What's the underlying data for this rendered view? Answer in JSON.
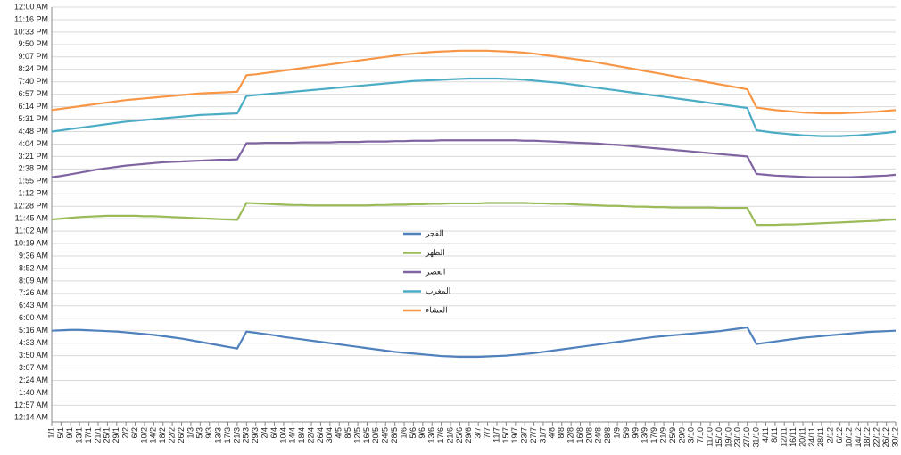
{
  "chart_data": {
    "type": "line",
    "categories": [
      "1/1",
      "5/1",
      "9/1",
      "13/1",
      "17/1",
      "21/1",
      "25/1",
      "29/1",
      "2/2",
      "6/2",
      "10/2",
      "14/2",
      "18/2",
      "22/2",
      "26/2",
      "1/3",
      "5/3",
      "9/3",
      "13/3",
      "17/3",
      "21/3",
      "25/3",
      "29/3",
      "2/4",
      "6/4",
      "10/4",
      "14/4",
      "18/4",
      "22/4",
      "26/4",
      "30/4",
      "4/5",
      "8/5",
      "12/5",
      "16/5",
      "20/5",
      "24/5",
      "28/5",
      "1/6",
      "5/6",
      "9/6",
      "13/6",
      "17/6",
      "21/6",
      "25/6",
      "29/6",
      "3/7",
      "7/7",
      "11/7",
      "15/7",
      "19/7",
      "23/7",
      "27/7",
      "31/7",
      "4/8",
      "8/8",
      "12/8",
      "16/8",
      "20/8",
      "24/8",
      "28/8",
      "1/9",
      "5/9",
      "9/9",
      "13/9",
      "17/9",
      "21/9",
      "25/9",
      "29/9",
      "3/10",
      "7/10",
      "11/10",
      "15/10",
      "19/10",
      "23/10",
      "27/10",
      "31/10",
      "4/11",
      "8/11",
      "12/11",
      "16/11",
      "20/11",
      "24/11",
      "28/11",
      "2/12",
      "6/12",
      "10/12",
      "14/12",
      "18/12",
      "22/12",
      "26/12",
      "30/12"
    ],
    "series": [
      {
        "name": "الفجر",
        "color": "#4f81bd",
        "values": [
          0.22,
          0.221,
          0.222,
          0.222,
          0.221,
          0.22,
          0.219,
          0.218,
          0.216,
          0.214,
          0.212,
          0.21,
          0.207,
          0.204,
          0.201,
          0.197,
          0.193,
          0.189,
          0.185,
          0.181,
          0.177,
          0.218,
          0.215,
          0.212,
          0.209,
          0.205,
          0.202,
          0.199,
          0.196,
          0.193,
          0.19,
          0.187,
          0.184,
          0.181,
          0.178,
          0.175,
          0.172,
          0.169,
          0.167,
          0.165,
          0.163,
          0.161,
          0.159,
          0.158,
          0.157,
          0.157,
          0.157,
          0.158,
          0.159,
          0.16,
          0.162,
          0.164,
          0.166,
          0.169,
          0.172,
          0.175,
          0.178,
          0.181,
          0.184,
          0.187,
          0.19,
          0.193,
          0.196,
          0.199,
          0.202,
          0.205,
          0.207,
          0.209,
          0.211,
          0.213,
          0.215,
          0.217,
          0.219,
          0.222,
          0.225,
          0.228,
          0.188,
          0.191,
          0.194,
          0.197,
          0.2,
          0.203,
          0.205,
          0.207,
          0.209,
          0.211,
          0.213,
          0.215,
          0.217,
          0.218,
          0.219,
          0.22
        ]
      },
      {
        "name": "الظهر",
        "color": "#9bbb59",
        "values": [
          0.488,
          0.49,
          0.492,
          0.494,
          0.495,
          0.496,
          0.497,
          0.497,
          0.497,
          0.497,
          0.496,
          0.496,
          0.495,
          0.494,
          0.493,
          0.492,
          0.491,
          0.49,
          0.489,
          0.488,
          0.487,
          0.528,
          0.527,
          0.526,
          0.525,
          0.524,
          0.523,
          0.523,
          0.522,
          0.522,
          0.522,
          0.522,
          0.522,
          0.522,
          0.522,
          0.523,
          0.523,
          0.524,
          0.524,
          0.525,
          0.525,
          0.526,
          0.526,
          0.527,
          0.527,
          0.527,
          0.527,
          0.528,
          0.528,
          0.528,
          0.528,
          0.528,
          0.527,
          0.527,
          0.526,
          0.526,
          0.525,
          0.524,
          0.523,
          0.522,
          0.521,
          0.521,
          0.52,
          0.519,
          0.519,
          0.518,
          0.518,
          0.517,
          0.517,
          0.517,
          0.517,
          0.517,
          0.516,
          0.516,
          0.516,
          0.516,
          0.475,
          0.475,
          0.475,
          0.476,
          0.476,
          0.477,
          0.478,
          0.479,
          0.48,
          0.481,
          0.482,
          0.483,
          0.484,
          0.485,
          0.487,
          0.488
        ]
      },
      {
        "name": "العصر",
        "color": "#8064a2",
        "values": [
          0.59,
          0.593,
          0.597,
          0.601,
          0.605,
          0.609,
          0.612,
          0.615,
          0.618,
          0.62,
          0.622,
          0.624,
          0.626,
          0.627,
          0.628,
          0.629,
          0.63,
          0.631,
          0.632,
          0.632,
          0.633,
          0.672,
          0.672,
          0.673,
          0.673,
          0.673,
          0.673,
          0.674,
          0.674,
          0.674,
          0.674,
          0.675,
          0.675,
          0.675,
          0.676,
          0.676,
          0.676,
          0.677,
          0.677,
          0.678,
          0.678,
          0.678,
          0.679,
          0.679,
          0.679,
          0.679,
          0.679,
          0.679,
          0.679,
          0.679,
          0.679,
          0.678,
          0.678,
          0.677,
          0.676,
          0.675,
          0.674,
          0.673,
          0.672,
          0.671,
          0.669,
          0.668,
          0.666,
          0.664,
          0.662,
          0.66,
          0.658,
          0.656,
          0.654,
          0.652,
          0.65,
          0.648,
          0.646,
          0.644,
          0.642,
          0.64,
          0.598,
          0.596,
          0.594,
          0.593,
          0.592,
          0.591,
          0.59,
          0.59,
          0.59,
          0.59,
          0.59,
          0.591,
          0.592,
          0.593,
          0.594,
          0.596
        ]
      },
      {
        "name": "المغرب",
        "color": "#4bacc6",
        "values": [
          0.7,
          0.703,
          0.706,
          0.709,
          0.712,
          0.715,
          0.718,
          0.721,
          0.724,
          0.726,
          0.728,
          0.73,
          0.732,
          0.734,
          0.736,
          0.738,
          0.74,
          0.741,
          0.742,
          0.743,
          0.744,
          0.786,
          0.788,
          0.79,
          0.792,
          0.794,
          0.796,
          0.798,
          0.8,
          0.802,
          0.804,
          0.806,
          0.808,
          0.81,
          0.812,
          0.814,
          0.816,
          0.818,
          0.82,
          0.822,
          0.823,
          0.824,
          0.825,
          0.826,
          0.827,
          0.828,
          0.828,
          0.828,
          0.828,
          0.827,
          0.826,
          0.825,
          0.823,
          0.821,
          0.819,
          0.817,
          0.814,
          0.811,
          0.808,
          0.805,
          0.802,
          0.799,
          0.796,
          0.793,
          0.79,
          0.787,
          0.784,
          0.781,
          0.778,
          0.775,
          0.772,
          0.769,
          0.766,
          0.763,
          0.76,
          0.757,
          0.703,
          0.7,
          0.697,
          0.695,
          0.693,
          0.691,
          0.69,
          0.689,
          0.689,
          0.689,
          0.69,
          0.691,
          0.693,
          0.695,
          0.697,
          0.7
        ]
      },
      {
        "name": "العشاء",
        "color": "#f79646",
        "values": [
          0.752,
          0.755,
          0.758,
          0.761,
          0.764,
          0.767,
          0.77,
          0.773,
          0.776,
          0.778,
          0.78,
          0.782,
          0.784,
          0.786,
          0.788,
          0.79,
          0.792,
          0.793,
          0.794,
          0.795,
          0.796,
          0.836,
          0.838,
          0.841,
          0.844,
          0.847,
          0.85,
          0.853,
          0.856,
          0.859,
          0.862,
          0.865,
          0.868,
          0.871,
          0.874,
          0.877,
          0.88,
          0.883,
          0.886,
          0.888,
          0.89,
          0.892,
          0.893,
          0.894,
          0.895,
          0.895,
          0.895,
          0.895,
          0.894,
          0.893,
          0.892,
          0.89,
          0.888,
          0.885,
          0.882,
          0.879,
          0.876,
          0.873,
          0.87,
          0.866,
          0.862,
          0.858,
          0.854,
          0.85,
          0.846,
          0.842,
          0.838,
          0.834,
          0.83,
          0.826,
          0.822,
          0.818,
          0.814,
          0.81,
          0.806,
          0.802,
          0.758,
          0.755,
          0.752,
          0.75,
          0.748,
          0.746,
          0.745,
          0.744,
          0.744,
          0.744,
          0.745,
          0.746,
          0.747,
          0.748,
          0.75,
          0.752
        ]
      }
    ],
    "ylim": [
      0,
      1
    ],
    "yticks": [
      {
        "value": 0.01,
        "label": "12:14 AM"
      },
      {
        "value": 0.04,
        "label": "12:57 AM"
      },
      {
        "value": 0.07,
        "label": "1:40 AM"
      },
      {
        "value": 0.1,
        "label": "2:24 AM"
      },
      {
        "value": 0.13,
        "label": "3:07 AM"
      },
      {
        "value": 0.16,
        "label": "3:50 AM"
      },
      {
        "value": 0.19,
        "label": "4:33 AM"
      },
      {
        "value": 0.22,
        "label": "5:16 AM"
      },
      {
        "value": 0.25,
        "label": "6:00 AM"
      },
      {
        "value": 0.28,
        "label": "6:43 AM"
      },
      {
        "value": 0.31,
        "label": "7:26 AM"
      },
      {
        "value": 0.34,
        "label": "8:09 AM"
      },
      {
        "value": 0.37,
        "label": "8:52 AM"
      },
      {
        "value": 0.4,
        "label": "9:36 AM"
      },
      {
        "value": 0.43,
        "label": "10:19 AM"
      },
      {
        "value": 0.46,
        "label": "11:02 AM"
      },
      {
        "value": 0.49,
        "label": "11:45 AM"
      },
      {
        "value": 0.52,
        "label": "12:28 PM"
      },
      {
        "value": 0.55,
        "label": "1:12 PM"
      },
      {
        "value": 0.58,
        "label": "1:55 PM"
      },
      {
        "value": 0.61,
        "label": "2:38 PM"
      },
      {
        "value": 0.64,
        "label": "3:21 PM"
      },
      {
        "value": 0.67,
        "label": "4:04 PM"
      },
      {
        "value": 0.7,
        "label": "4:48 PM"
      },
      {
        "value": 0.73,
        "label": "5:31 PM"
      },
      {
        "value": 0.76,
        "label": "6:14 PM"
      },
      {
        "value": 0.79,
        "label": "6:57 PM"
      },
      {
        "value": 0.82,
        "label": "7:40 PM"
      },
      {
        "value": 0.85,
        "label": "8:24 PM"
      },
      {
        "value": 0.88,
        "label": "9:07 PM"
      },
      {
        "value": 0.91,
        "label": "9:50 PM"
      },
      {
        "value": 0.94,
        "label": "10:33 PM"
      },
      {
        "value": 0.97,
        "label": "11:16 PM"
      },
      {
        "value": 1.0,
        "label": "12:00 AM"
      }
    ],
    "grid": true
  }
}
